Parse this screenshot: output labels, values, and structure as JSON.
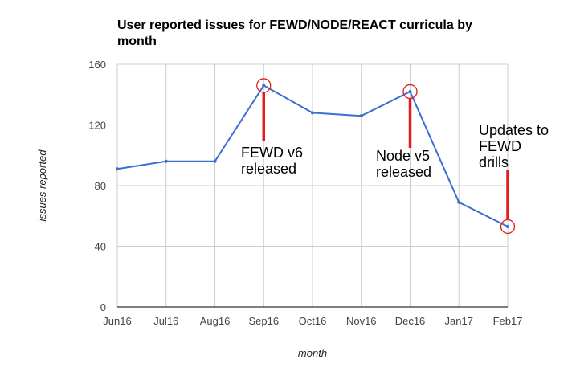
{
  "chart_data": {
    "type": "line",
    "title_lines": [
      "User reported issues for FEWD/NODE/REACT curricula by",
      "month"
    ],
    "xlabel": "month",
    "ylabel": "issues reported",
    "categories": [
      "Jun16",
      "Jul16",
      "Aug16",
      "Sep16",
      "Oct16",
      "Nov16",
      "Dec16",
      "Jan17",
      "Feb17"
    ],
    "series": [
      {
        "name": "issues reported",
        "values": [
          91,
          96,
          96,
          146,
          128,
          126,
          142,
          69,
          53
        ]
      }
    ],
    "ylim": [
      0,
      160
    ],
    "yticks": [
      0,
      40,
      80,
      120,
      160
    ],
    "grid": true,
    "annotations": [
      {
        "category": "Sep16",
        "lines": [
          "FEWD v6",
          "released"
        ]
      },
      {
        "category": "Dec16",
        "lines": [
          "Node v5",
          "released"
        ]
      },
      {
        "category": "Feb17",
        "lines": [
          "Updates to",
          "FEWD",
          "drills"
        ]
      }
    ],
    "colors": {
      "line": "#3b6fd4",
      "grid": "#cccccc",
      "axis": "#333333",
      "marker": "#e31b1b"
    }
  }
}
